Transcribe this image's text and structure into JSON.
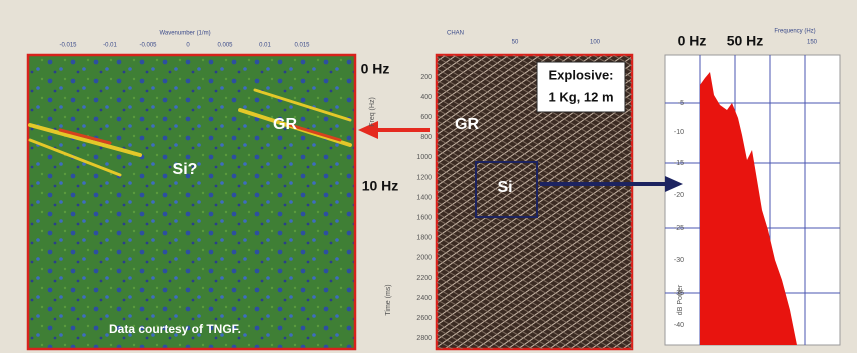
{
  "left_panel": {
    "axis_title": "Wavenumber (1/m)",
    "x_ticks": [
      "-0.015",
      "-0.01",
      "-0.005",
      "0",
      "0.005",
      "0.01",
      "0.015"
    ],
    "freq_axis_title": "Freq (Hz)",
    "time_axis_title": "Time (ms)",
    "freq_labels": [
      "0 Hz",
      "10 Hz"
    ],
    "labels": [
      "GR",
      "Si?"
    ],
    "credit": "Data courtesy of TNGF."
  },
  "middle_panel": {
    "axis_title": "CHAN",
    "x_ticks": [
      "50",
      "100"
    ],
    "time_ticks": [
      "200",
      "400",
      "600",
      "800",
      "1000",
      "1200",
      "1400",
      "1600",
      "1800",
      "2000",
      "2200",
      "2400",
      "2600",
      "2800"
    ],
    "source_box": [
      "Explosive:",
      "1 Kg, 12 m"
    ],
    "labels": [
      "GR",
      "Si"
    ]
  },
  "right_panel": {
    "freq_labels": [
      "0 Hz",
      "50 Hz"
    ],
    "axis_title": "Frequency (Hz)",
    "x_ticks": [
      "150"
    ],
    "y_ticks": [
      "-5",
      "-10",
      "-15",
      "-20",
      "-25",
      "-30",
      "-35",
      "-40"
    ],
    "y_axis_title": "dB Power"
  }
}
